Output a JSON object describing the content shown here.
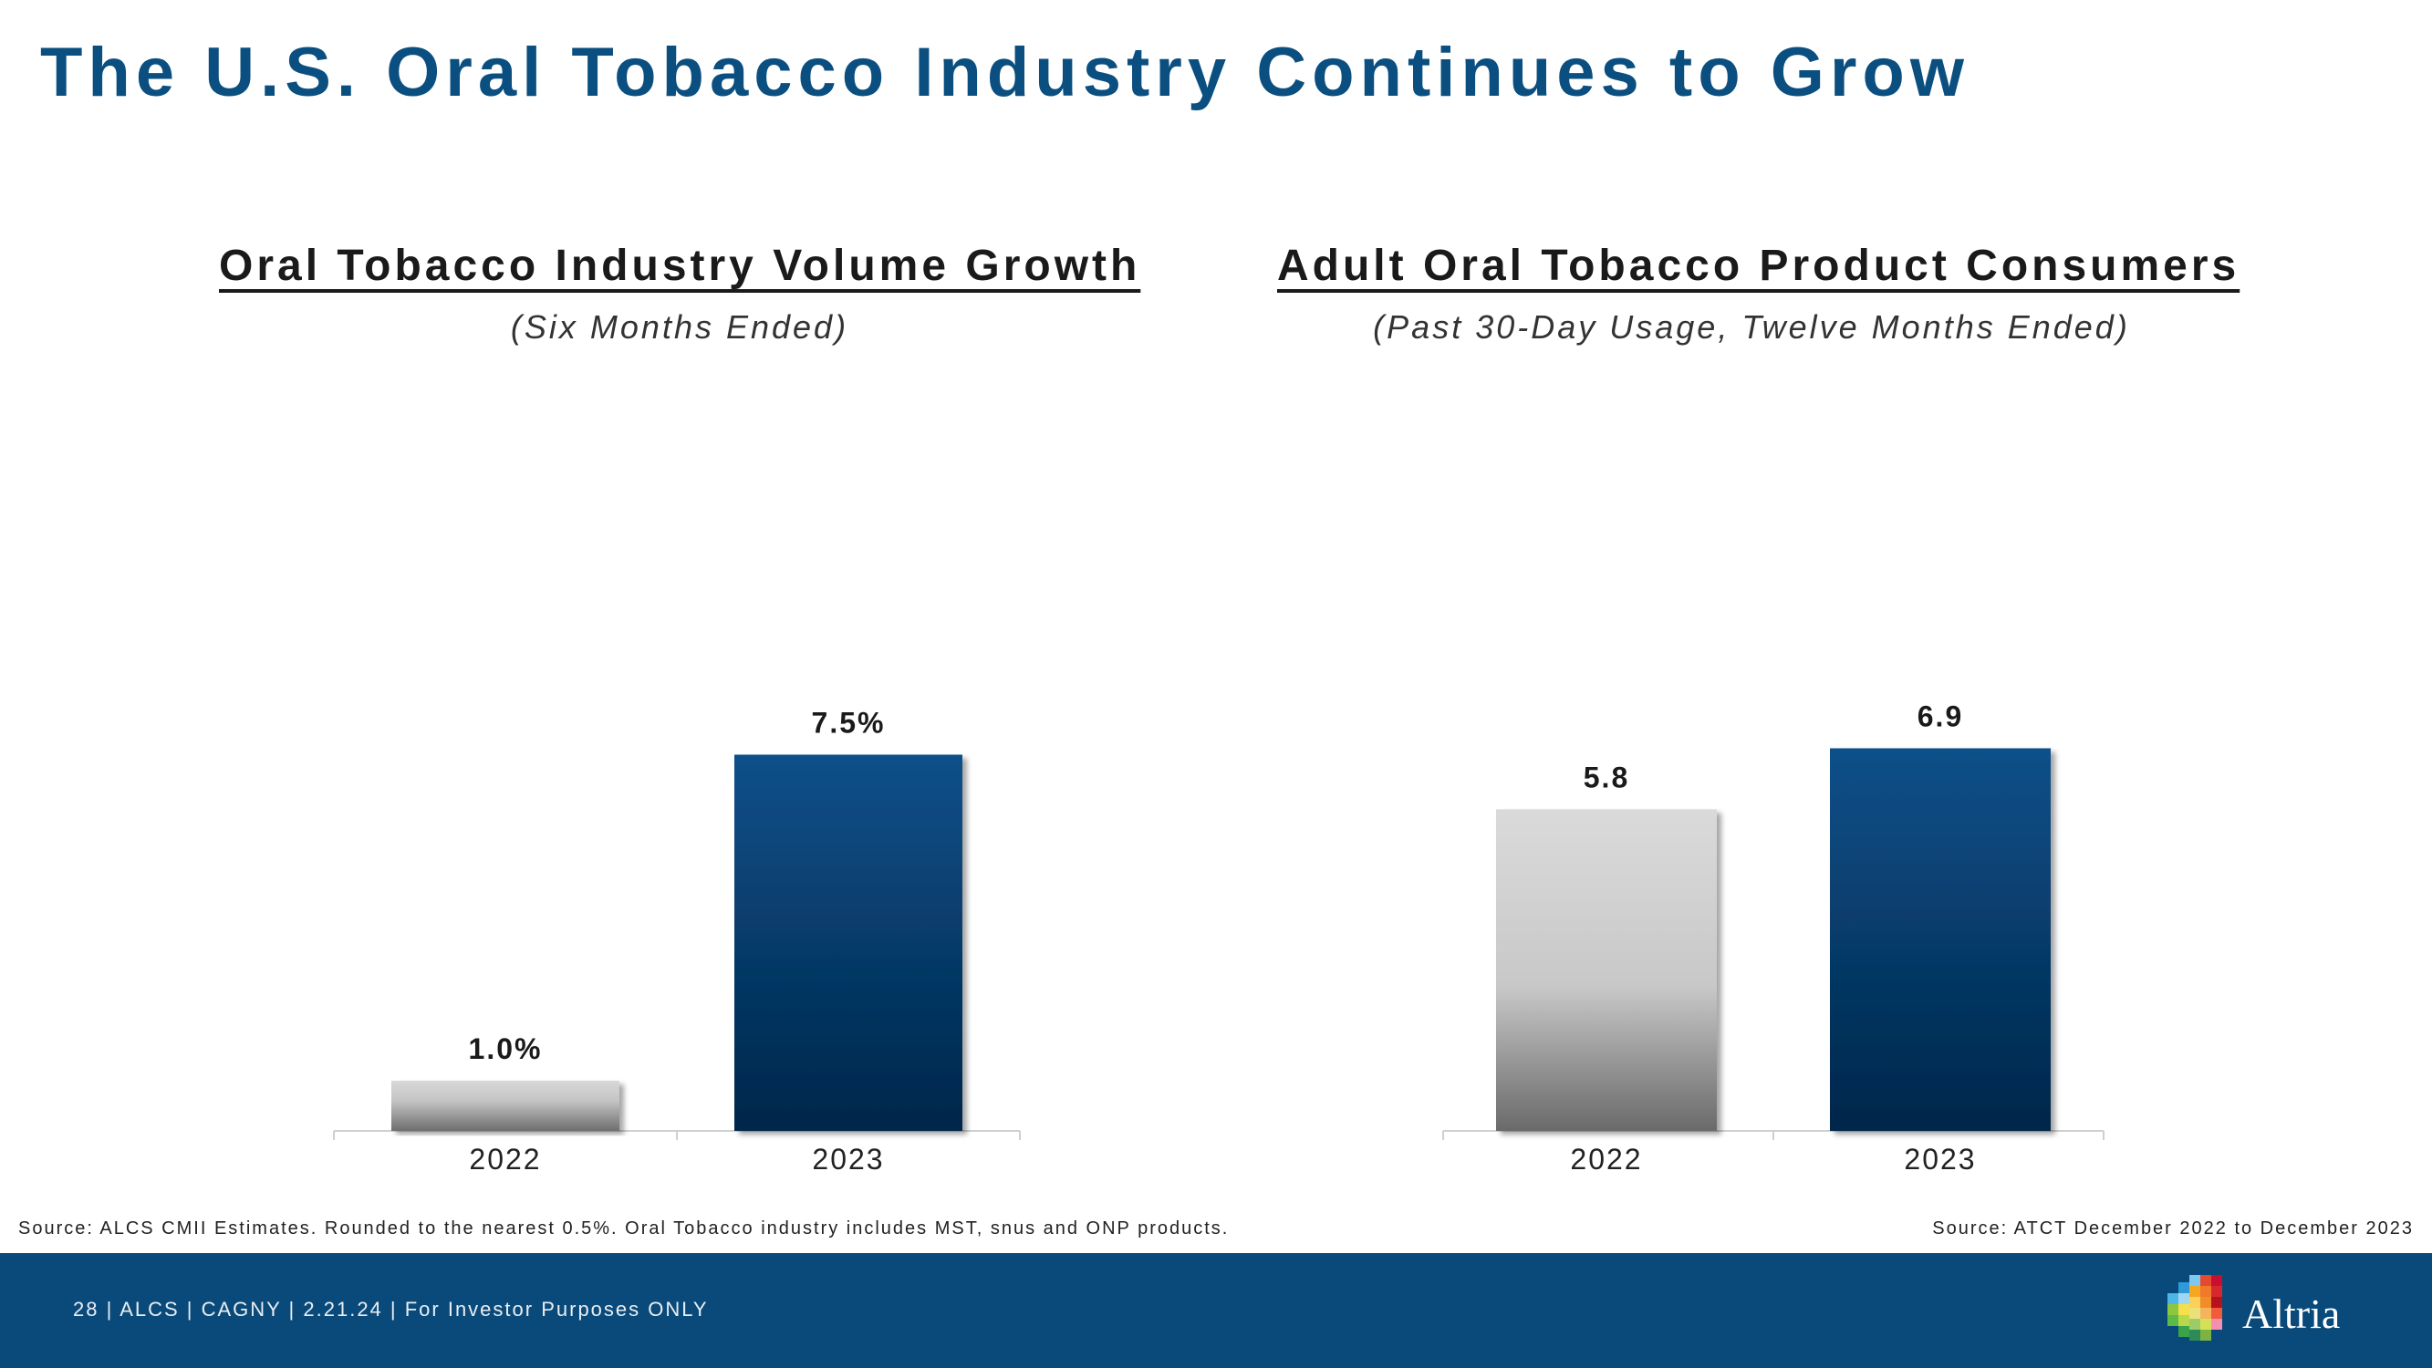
{
  "page": {
    "title": "The U.S. Oral Tobacco Industry Continues to Grow"
  },
  "chart_data": [
    {
      "type": "bar",
      "title": "Oral Tobacco Industry Volume Growth",
      "subtitle": "(Six Months Ended)",
      "categories": [
        "2022",
        "2023"
      ],
      "values": [
        1.0,
        7.5
      ],
      "data_labels": [
        "1.0%",
        "7.5%"
      ],
      "xlabel": "",
      "ylabel": "",
      "ylim": [
        0,
        8
      ],
      "grid": false,
      "bar_colors": [
        "#bfbfbf",
        "#0a4f80"
      ]
    },
    {
      "type": "bar",
      "title": "Adult Oral Tobacco Product Consumers",
      "subtitle": "(Past 30-Day Usage, Twelve Months Ended)",
      "categories": [
        "2022",
        "2023"
      ],
      "values": [
        5.8,
        6.9
      ],
      "data_labels": [
        "5.8",
        "6.9"
      ],
      "xlabel": "",
      "ylabel": "",
      "ylim": [
        0,
        8
      ],
      "grid": false,
      "bar_colors": [
        "#bfbfbf",
        "#0a4f80"
      ]
    }
  ],
  "sources": {
    "left": "Source: ALCS CMII Estimates. Rounded to the nearest 0.5%. Oral Tobacco industry includes MST, snus and ONP products.",
    "right": "Source: ATCT December 2022 to December 2023"
  },
  "footer": {
    "text": "28 | ALCS | CAGNY | 2.21.24 | For Investor Purposes ONLY",
    "logo_text": "Altria",
    "colors": {
      "bar": "#0a4a7a",
      "title": "#0a4f80"
    }
  }
}
